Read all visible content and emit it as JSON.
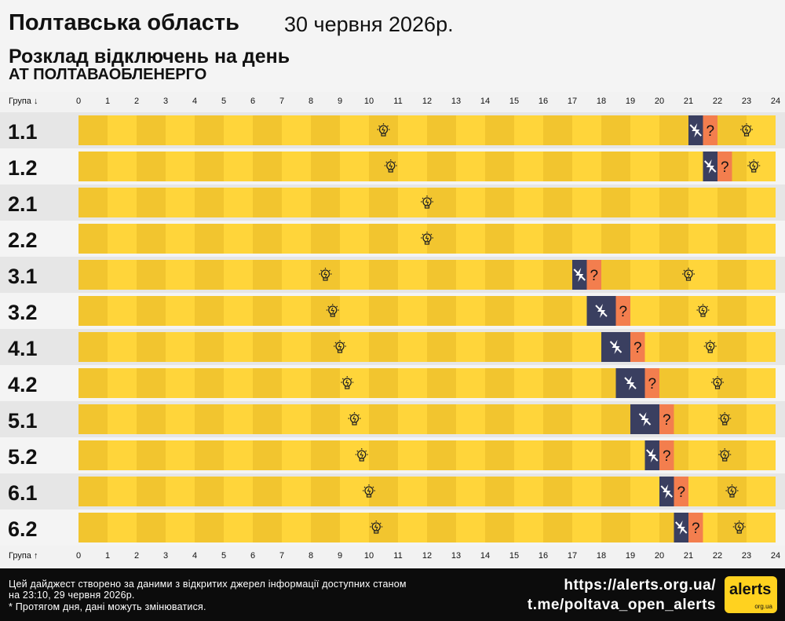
{
  "header": {
    "region": "Полтавська область",
    "date": "30 червня 2026р.",
    "subtitle": "Розклад відключень на день",
    "company": "АТ ПОЛТАВАОБЛЕНЕРГО"
  },
  "chart_data": {
    "type": "timeline",
    "x_axis_label_top": "Група ↓",
    "x_axis_label_bottom": "Група ↑",
    "hours": [
      "0",
      "1",
      "2",
      "3",
      "4",
      "5",
      "6",
      "7",
      "8",
      "9",
      "10",
      "11",
      "12",
      "13",
      "14",
      "15",
      "16",
      "17",
      "18",
      "19",
      "20",
      "21",
      "22",
      "23",
      "24"
    ],
    "xlim": [
      0,
      24
    ],
    "status_legend": {
      "on": "light-bulb-icon",
      "off": "power-off-icon",
      "maybe": "?"
    },
    "colors": {
      "on_dark": "#f2c52f",
      "on_light": "#ffd53a",
      "off": "#3a3f60",
      "maybe": "#f37e4e"
    },
    "groups": [
      {
        "name": "1.1",
        "off": [
          21,
          21.5
        ],
        "maybe": [
          21.5,
          22
        ],
        "on_icons": [
          10.5,
          23
        ]
      },
      {
        "name": "1.2",
        "off": [
          21.5,
          22
        ],
        "maybe": [
          22,
          22.5
        ],
        "on_icons": [
          10.75,
          23.25
        ]
      },
      {
        "name": "2.1",
        "off": null,
        "maybe": null,
        "on_icons": [
          12
        ]
      },
      {
        "name": "2.2",
        "off": null,
        "maybe": null,
        "on_icons": [
          12
        ]
      },
      {
        "name": "3.1",
        "off": [
          17,
          17.5
        ],
        "maybe": [
          17.5,
          18
        ],
        "on_icons": [
          8.5,
          21
        ]
      },
      {
        "name": "3.2",
        "off": [
          17.5,
          18.5
        ],
        "maybe": [
          18.5,
          19
        ],
        "on_icons": [
          8.75,
          21.5
        ]
      },
      {
        "name": "4.1",
        "off": [
          18,
          19
        ],
        "maybe": [
          19,
          19.5
        ],
        "on_icons": [
          9,
          21.75
        ]
      },
      {
        "name": "4.2",
        "off": [
          18.5,
          19.5
        ],
        "maybe": [
          19.5,
          20
        ],
        "on_icons": [
          9.25,
          22
        ]
      },
      {
        "name": "5.1",
        "off": [
          19,
          20
        ],
        "maybe": [
          20,
          20.5
        ],
        "on_icons": [
          9.5,
          22.25
        ]
      },
      {
        "name": "5.2",
        "off": [
          19.5,
          20
        ],
        "maybe": [
          20,
          20.5
        ],
        "on_icons": [
          9.75,
          22.25
        ]
      },
      {
        "name": "6.1",
        "off": [
          20,
          20.5
        ],
        "maybe": [
          20.5,
          21
        ],
        "on_icons": [
          10,
          22.5
        ]
      },
      {
        "name": "6.2",
        "off": [
          20.5,
          21
        ],
        "maybe": [
          21,
          21.5
        ],
        "on_icons": [
          10.25,
          22.75
        ]
      }
    ]
  },
  "footer": {
    "disclaimer_line1": "Цей дайджест створено за даними з відкритих джерел інформації доступних станом на 23:10, 29 червня 2026р.",
    "disclaimer_line2": "* Протягом дня, дані можуть змінюватися.",
    "url": "https://alerts.org.ua/",
    "telegram": "t.me/poltava_open_alerts",
    "logo_text": "alerts",
    "logo_sub": "org.ua"
  }
}
